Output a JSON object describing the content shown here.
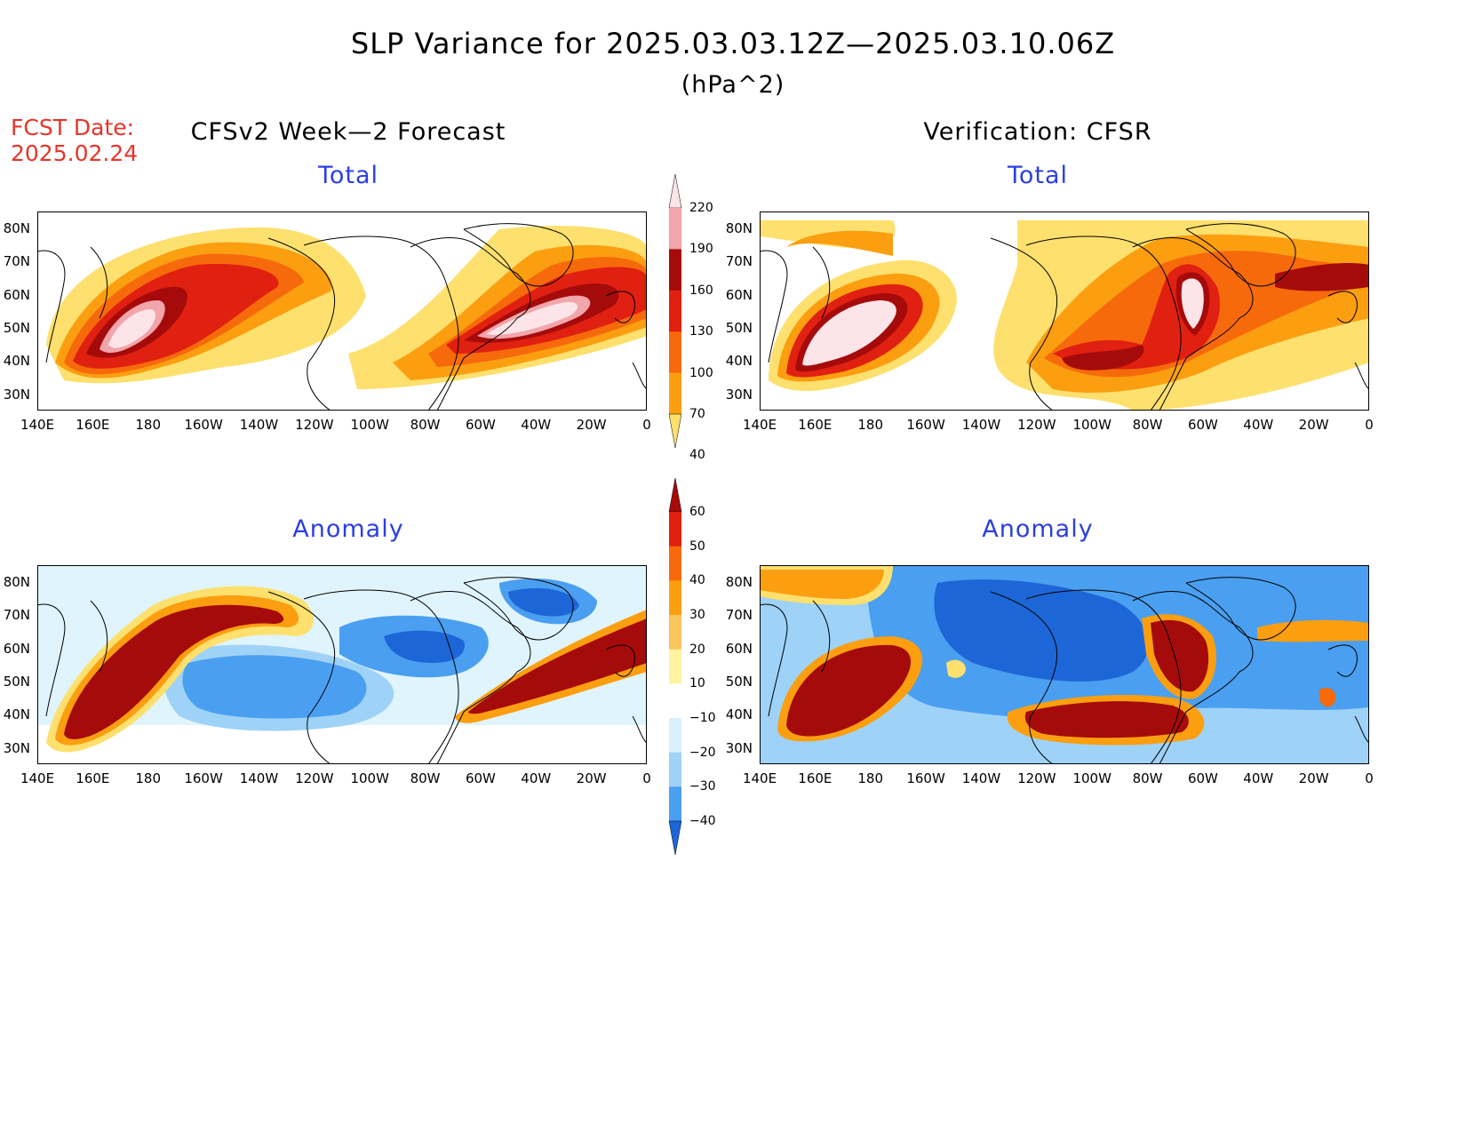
{
  "title": "SLP Variance for 2025.03.03.12Z—2025.03.10.06Z",
  "units": "(hPa^2)",
  "fcst_date_label": "FCST Date:",
  "fcst_date": "2025.02.24",
  "left_heading": "CFSv2 Week—2 Forecast",
  "right_heading": "Verification: CFSR",
  "panel_titles": {
    "total": "Total",
    "anomaly": "Anomaly"
  },
  "lat_ticks": [
    "80N",
    "70N",
    "60N",
    "50N",
    "40N",
    "30N"
  ],
  "lon_ticks": [
    "140E",
    "160E",
    "180",
    "160W",
    "140W",
    "120W",
    "100W",
    "80W",
    "60W",
    "40W",
    "20W",
    "0"
  ],
  "total_colorbar": {
    "levels": [
      "220",
      "190",
      "160",
      "130",
      "100",
      "70",
      "40"
    ],
    "colors": [
      "#fde4e8",
      "#f2a5aa",
      "#a60b0b",
      "#e02010",
      "#f66a0c",
      "#fb9e10",
      "#fde06e"
    ]
  },
  "anomaly_colorbar": {
    "levels": [
      "60",
      "50",
      "40",
      "30",
      "20",
      "10",
      "−10",
      "−20",
      "−30",
      "−40"
    ],
    "colors": [
      "#a60b0b",
      "#e02010",
      "#f66a0c",
      "#fb9e10",
      "#fcc55c",
      "#fdf3a0",
      "#ffffff",
      "#d8f1fd",
      "#9fd2f7",
      "#4a9ff0",
      "#1d66d8"
    ]
  },
  "colors": {
    "title_blue": "#2b3fe0",
    "fcst_red": "#e8342a"
  }
}
